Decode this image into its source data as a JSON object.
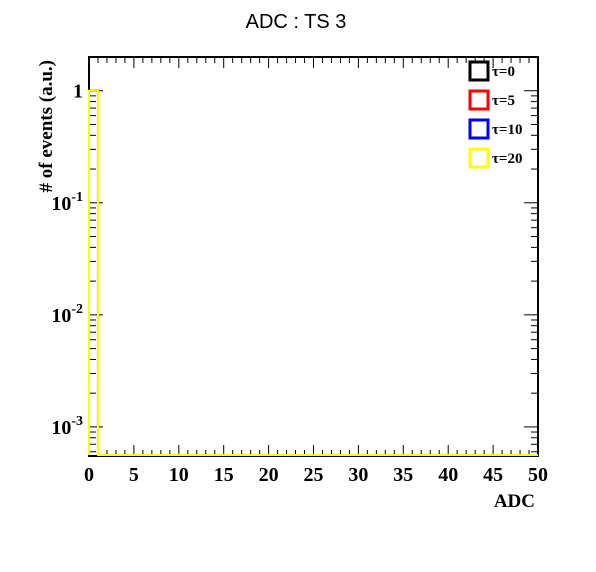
{
  "chart_data": {
    "type": "histogram",
    "title": "ADC : TS 3",
    "xlabel": "ADC",
    "ylabel": "# of events (a.u.)",
    "xlim": [
      0,
      50
    ],
    "ylim": [
      0.00055,
      2
    ],
    "yscale": "log",
    "x_tick_labels": [
      "0",
      "5",
      "10",
      "15",
      "20",
      "25",
      "30",
      "35",
      "40",
      "45",
      "50"
    ],
    "x_ticks": [
      0,
      5,
      10,
      15,
      20,
      25,
      30,
      35,
      40,
      45,
      50
    ],
    "y_ticks": [
      {
        "value": 1,
        "base": "1",
        "exp": ""
      },
      {
        "value": 0.1,
        "base": "10",
        "exp": "-1"
      },
      {
        "value": 0.01,
        "base": "10",
        "exp": "-2"
      },
      {
        "value": 0.001,
        "base": "10",
        "exp": "-3"
      }
    ],
    "legend_position": "top-right",
    "series": [
      {
        "name": "τ=0",
        "color": "#000000",
        "bins": [
          {
            "x0": 0,
            "x1": 1,
            "y": 1
          }
        ]
      },
      {
        "name": "τ=5",
        "color": "#ff0000",
        "bins": [
          {
            "x0": 0,
            "x1": 1,
            "y": 1
          }
        ]
      },
      {
        "name": "τ=10",
        "color": "#0000ff",
        "bins": [
          {
            "x0": 0,
            "x1": 1,
            "y": 1
          }
        ]
      },
      {
        "name": "τ=20",
        "color": "#ffff00",
        "bins": [
          {
            "x0": 0,
            "x1": 1,
            "y": 1
          }
        ]
      }
    ]
  }
}
